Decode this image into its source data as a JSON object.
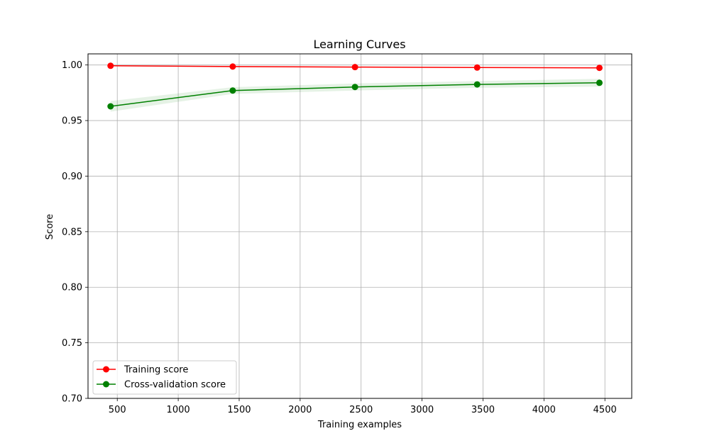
{
  "chart_data": {
    "type": "line",
    "title": "Learning Curves",
    "xlabel": "Training examples",
    "ylabel": "Score",
    "xlim": [
      260,
      4720
    ],
    "ylim": [
      0.7,
      1.01
    ],
    "xticks": [
      500,
      1000,
      1500,
      2000,
      2500,
      3000,
      3500,
      4000,
      4500
    ],
    "xtick_labels": [
      "500",
      "1000",
      "1500",
      "2000",
      "2500",
      "3000",
      "3500",
      "4000",
      "4500"
    ],
    "yticks": [
      0.7,
      0.75,
      0.8,
      0.85,
      0.9,
      0.95,
      1.0
    ],
    "ytick_labels": [
      "0.70",
      "0.75",
      "0.80",
      "0.85",
      "0.90",
      "0.95",
      "1.00"
    ],
    "grid": true,
    "legend_position": "lower-left",
    "x": [
      445,
      1447,
      2450,
      3452,
      4455
    ],
    "series": [
      {
        "name": "Training score",
        "color": "#ff0000",
        "band_color": "#ff0000",
        "values": [
          0.9993,
          0.9986,
          0.9981,
          0.9977,
          0.9974
        ],
        "band_low": [
          0.999,
          0.998,
          0.9976,
          0.9973,
          0.997
        ],
        "band_high": [
          0.9996,
          0.9992,
          0.9986,
          0.9981,
          0.9978
        ]
      },
      {
        "name": "Cross-validation score",
        "color": "#008000",
        "band_color": "#008000",
        "values": [
          0.9628,
          0.977,
          0.9802,
          0.9825,
          0.984
        ],
        "band_low": [
          0.958,
          0.974,
          0.977,
          0.9795,
          0.9805
        ],
        "band_high": [
          0.9676,
          0.98,
          0.9834,
          0.9855,
          0.9875
        ]
      }
    ]
  }
}
